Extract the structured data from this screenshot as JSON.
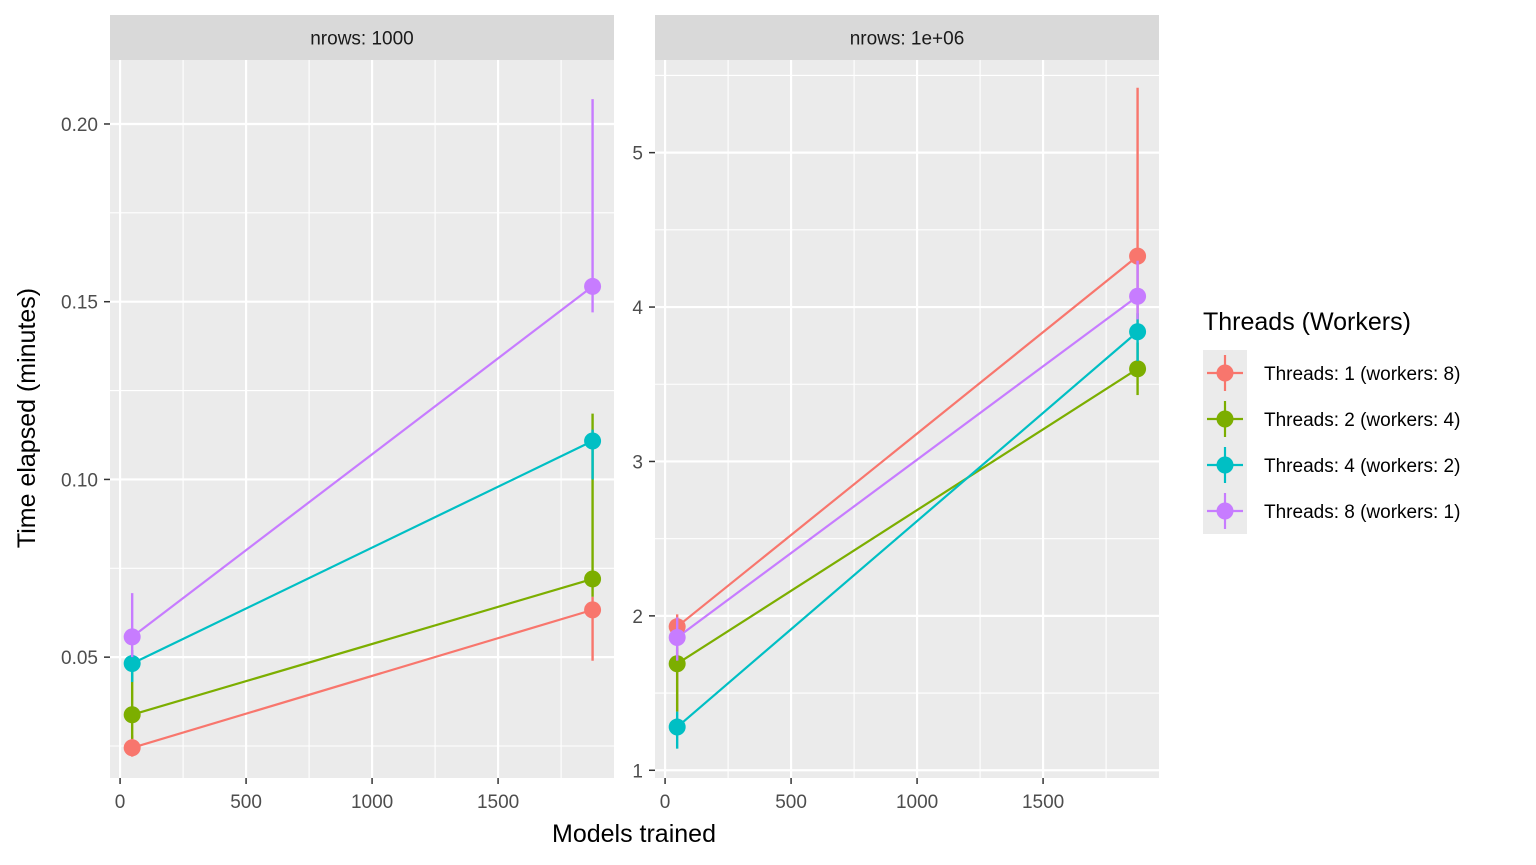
{
  "chart_data": {
    "type": "line",
    "xlabel": "Models trained",
    "ylabel": "Time elapsed (minutes)",
    "legend_title": "Threads (Workers)",
    "legend_position": "right",
    "grid": true,
    "x_ticks": [
      0,
      500,
      1000,
      1500
    ],
    "series_names": [
      "Threads: 1 (workers: 8)",
      "Threads: 2 (workers: 4)",
      "Threads: 4 (workers: 2)",
      "Threads: 8 (workers: 1)"
    ],
    "colors": [
      "#F8766D",
      "#7CAE00",
      "#00BFC4",
      "#C77CFF"
    ],
    "panels": [
      {
        "strip": "nrows: 1000",
        "xlim": [
          -40,
          1960
        ],
        "ylim": [
          0.016,
          0.218
        ],
        "y_ticks": [
          0.05,
          0.1,
          0.15,
          0.2
        ],
        "y_tick_labels": [
          "0.05",
          "0.10",
          "0.15",
          "0.20"
        ],
        "series": [
          {
            "name": "Threads: 1 (workers: 8)",
            "x": [
              48,
              1875
            ],
            "y": [
              0.0245,
              0.0633
            ],
            "ymin": [
              0.022,
              0.049
            ],
            "ymax": [
              0.028,
              0.067
            ]
          },
          {
            "name": "Threads: 2 (workers: 4)",
            "x": [
              48,
              1875
            ],
            "y": [
              0.0338,
              0.072
            ],
            "ymin": [
              0.027,
              0.067
            ],
            "ymax": [
              0.046,
              0.1185
            ]
          },
          {
            "name": "Threads: 4 (workers: 2)",
            "x": [
              48,
              1875
            ],
            "y": [
              0.0482,
              0.1108
            ],
            "ymin": [
              0.043,
              0.1
            ],
            "ymax": [
              0.052,
              0.114
            ]
          },
          {
            "name": "Threads: 8 (workers: 1)",
            "x": [
              48,
              1875
            ],
            "y": [
              0.0557,
              0.1543
            ],
            "ymin": [
              0.05,
              0.147
            ],
            "ymax": [
              0.068,
              0.207
            ]
          }
        ]
      },
      {
        "strip": "nrows: 1e+06",
        "xlim": [
          -40,
          1960
        ],
        "ylim": [
          0.95,
          5.6
        ],
        "y_ticks": [
          1,
          2,
          3,
          4,
          5
        ],
        "y_tick_labels": [
          "1",
          "2",
          "3",
          "4",
          "5"
        ],
        "series": [
          {
            "name": "Threads: 1 (workers: 8)",
            "x": [
              48,
              1875
            ],
            "y": [
              1.93,
              4.33
            ],
            "ymin": [
              1.38,
              3.8
            ],
            "ymax": [
              2.01,
              5.42
            ]
          },
          {
            "name": "Threads: 2 (workers: 4)",
            "x": [
              48,
              1875
            ],
            "y": [
              1.69,
              3.6
            ],
            "ymin": [
              1.38,
              3.43
            ],
            "ymax": [
              1.79,
              3.77
            ]
          },
          {
            "name": "Threads: 4 (workers: 2)",
            "x": [
              48,
              1875
            ],
            "y": [
              1.28,
              3.84
            ],
            "ymin": [
              1.14,
              3.65
            ],
            "ymax": [
              1.38,
              3.96
            ]
          },
          {
            "name": "Threads: 8 (workers: 1)",
            "x": [
              48,
              1875
            ],
            "y": [
              1.86,
              4.07
            ],
            "ymin": [
              1.71,
              3.92
            ],
            "ymax": [
              1.99,
              4.3
            ]
          }
        ]
      }
    ]
  }
}
